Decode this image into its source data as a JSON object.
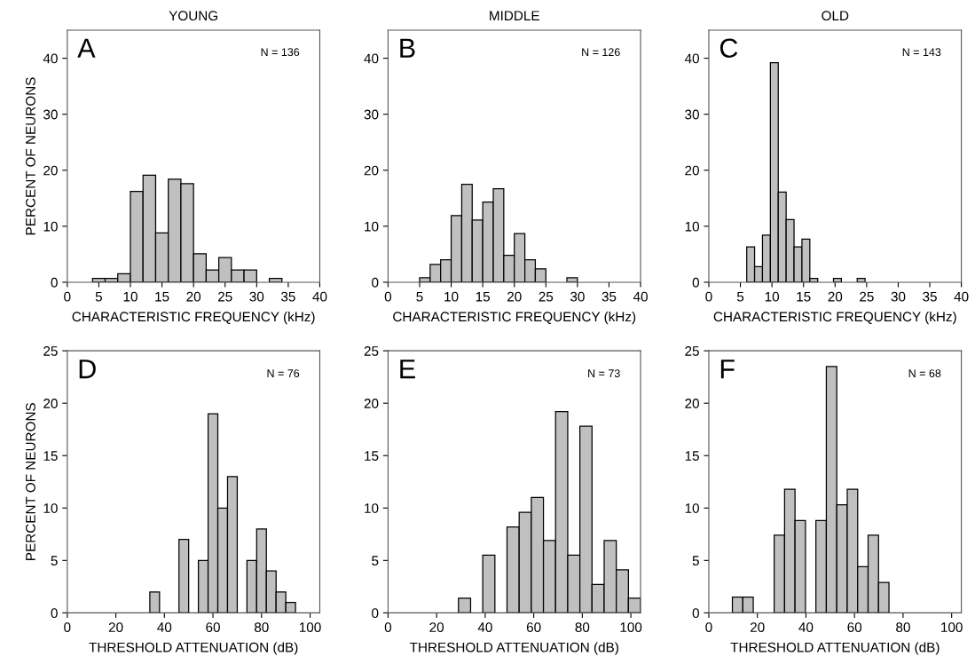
{
  "chart_data": [
    {
      "type": "histogram",
      "title": "YOUNG",
      "ylabel": "PERCENT OF NEURONS",
      "xlabel": "CHARACTERISTIC FREQUENCY (kHz)",
      "annotations": [
        "A",
        "N = 136"
      ],
      "color": "#c0c0c0",
      "xlim": [
        0,
        40
      ],
      "xticks": [
        0,
        5,
        10,
        15,
        20,
        25,
        30,
        35,
        40
      ],
      "ylim": [
        0,
        45
      ],
      "yticks": [
        0,
        10,
        20,
        30,
        40
      ],
      "grid": false,
      "legend": false,
      "bins": [
        4,
        6,
        8,
        10,
        12,
        14,
        16,
        18,
        20,
        22,
        24,
        26,
        28,
        30,
        32,
        34
      ],
      "values": [
        0.7,
        0.7,
        1.5,
        16.2,
        19.1,
        8.8,
        18.4,
        17.6,
        5.1,
        2.2,
        4.4,
        2.2,
        2.2,
        0,
        0.7
      ]
    },
    {
      "type": "histogram",
      "title": "MIDDLE",
      "xlabel": "CHARACTERISTIC FREQUENCY (kHz)",
      "annotations": [
        "B",
        "N = 126"
      ],
      "color": "#c0c0c0",
      "xlim": [
        0,
        40
      ],
      "xticks": [
        0,
        5,
        10,
        15,
        20,
        25,
        30,
        35,
        40
      ],
      "ylim": [
        0,
        45
      ],
      "yticks": [
        0,
        10,
        20,
        30,
        40
      ],
      "grid": false,
      "legend": false,
      "bins": [
        5,
        6.67,
        8.33,
        10,
        11.67,
        13.33,
        15,
        16.67,
        18.33,
        20,
        21.67,
        23.33,
        25,
        26.67,
        28.33,
        30
      ],
      "values": [
        0.8,
        3.2,
        4.0,
        11.9,
        17.5,
        11.1,
        14.3,
        16.7,
        4.8,
        8.7,
        4.0,
        2.4,
        0,
        0,
        0.8
      ]
    },
    {
      "type": "histogram",
      "title": "OLD",
      "xlabel": "CHARACTERISTIC FREQUENCY (kHz)",
      "annotations": [
        "C",
        "N = 143"
      ],
      "color": "#c0c0c0",
      "xlim": [
        0,
        40
      ],
      "xticks": [
        0,
        5,
        10,
        15,
        20,
        25,
        30,
        35,
        40
      ],
      "ylim": [
        0,
        45
      ],
      "yticks": [
        0,
        10,
        20,
        30,
        40
      ],
      "grid": false,
      "legend": false,
      "bins": [
        6,
        7.25,
        8.5,
        9.75,
        11,
        12.25,
        13.5,
        14.75,
        16,
        17.25,
        18.5,
        19.75,
        21,
        22.25,
        23.5,
        24.75
      ],
      "values": [
        6.3,
        2.8,
        8.4,
        39.2,
        16.1,
        11.2,
        6.3,
        7.7,
        0.7,
        0,
        0,
        0.7,
        0,
        0,
        0.7
      ]
    },
    {
      "type": "histogram",
      "ylabel": "PERCENT OF NEURONS",
      "xlabel": "THRESHOLD ATTENUATION (dB)",
      "annotations": [
        "D",
        "N = 76"
      ],
      "color": "#c0c0c0",
      "xlim": [
        0,
        104
      ],
      "xticks": [
        0,
        20,
        40,
        60,
        80,
        100
      ],
      "ylim": [
        0,
        25
      ],
      "yticks": [
        0,
        5,
        10,
        15,
        20,
        25
      ],
      "grid": false,
      "legend": false,
      "bins": [
        34,
        38,
        42,
        46,
        50,
        54,
        58,
        62,
        66,
        70,
        74,
        78,
        82,
        86,
        90,
        94
      ],
      "values": [
        2,
        0,
        0,
        7,
        0,
        5,
        19,
        10,
        13,
        0,
        5,
        8,
        4,
        2,
        1
      ]
    },
    {
      "type": "histogram",
      "xlabel": "THRESHOLD ATTENUATION (dB)",
      "annotations": [
        "E",
        "N = 73"
      ],
      "color": "#c0c0c0",
      "xlim": [
        0,
        104
      ],
      "xticks": [
        0,
        20,
        40,
        60,
        80,
        100
      ],
      "ylim": [
        0,
        25
      ],
      "yticks": [
        0,
        5,
        10,
        15,
        20,
        25
      ],
      "grid": false,
      "legend": false,
      "bins": [
        29,
        34,
        39,
        44,
        49,
        54,
        59,
        64,
        69,
        74,
        79,
        84,
        89,
        94,
        99,
        104
      ],
      "values": [
        1.4,
        0,
        5.5,
        0,
        8.2,
        9.6,
        11.0,
        6.9,
        19.2,
        5.5,
        17.8,
        2.7,
        6.9,
        4.1,
        1.4
      ]
    },
    {
      "type": "histogram",
      "xlabel": "THRESHOLD ATTENUATION (dB)",
      "annotations": [
        "F",
        "N = 68"
      ],
      "color": "#c0c0c0",
      "xlim": [
        0,
        104
      ],
      "xticks": [
        0,
        20,
        40,
        60,
        80,
        100
      ],
      "ylim": [
        0,
        25
      ],
      "yticks": [
        0,
        5,
        10,
        15,
        20,
        25
      ],
      "grid": false,
      "legend": false,
      "bins": [
        9.7,
        14,
        18.3,
        22.6,
        26.9,
        31.2,
        35.5,
        39.8,
        44.1,
        48.4,
        52.7,
        57,
        61.3,
        65.6,
        69.9,
        74.2
      ],
      "values": [
        1.5,
        1.5,
        0,
        0,
        7.4,
        11.8,
        8.8,
        0,
        8.8,
        23.5,
        10.3,
        11.8,
        4.4,
        7.4,
        2.9
      ]
    }
  ]
}
